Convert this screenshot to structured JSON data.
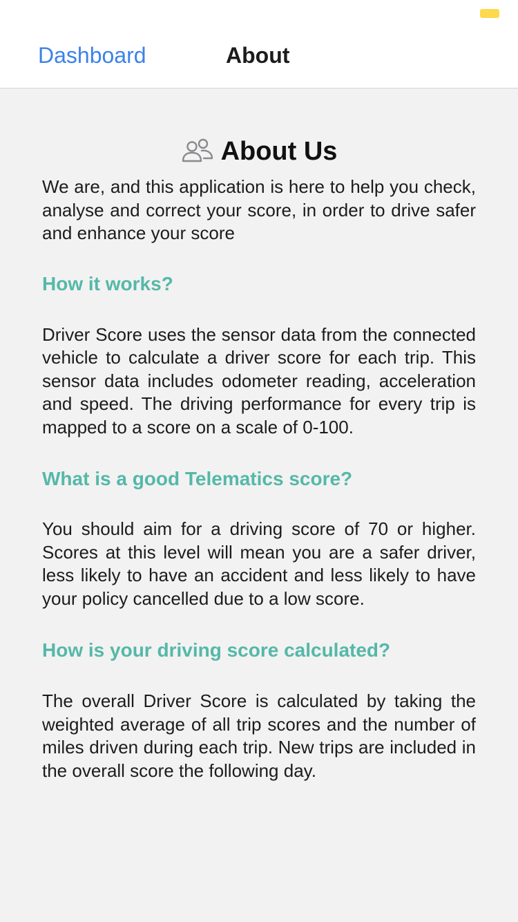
{
  "nav": {
    "back_label": "Dashboard",
    "title": "About"
  },
  "page": {
    "title": "About Us",
    "title_icon": "people-icon",
    "intro": "We are, and this application is here to help you check, analyse and correct your score, in order to drive safer and enhance your score"
  },
  "sections": [
    {
      "heading": "How it works?",
      "body": "Driver Score uses the sensor data from the connected vehicle to calculate a driver score for each trip. This sensor data includes odometer reading, acceleration and speed. The driving performance for every trip is mapped to a score on a scale of 0-100."
    },
    {
      "heading": "What is a good Telematics score?",
      "body": "You should aim for a driving score of 70 or higher. Scores at this level will mean you are a safer driver, less likely to have an accident and less likely to have your policy cancelled due to a low score."
    },
    {
      "heading": "How is your driving score calculated?",
      "body": "The overall Driver Score is calculated by taking the weighted average of all trip scores and the number of miles driven during each trip. New trips are included in the overall score the following day."
    }
  ],
  "colors": {
    "accent_link": "#3b82e8",
    "section_heading": "#55b8a8",
    "battery": "#fdd94e",
    "background": "#f2f2f2"
  }
}
